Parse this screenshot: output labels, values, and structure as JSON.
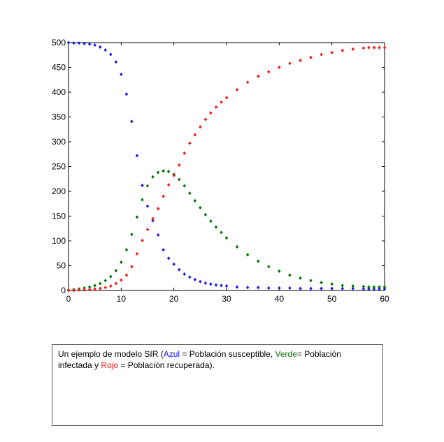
{
  "chart_data": {
    "type": "scatter",
    "title": "",
    "xlabel": "",
    "ylabel": "",
    "xlim": [
      0,
      60
    ],
    "ylim": [
      0,
      500
    ],
    "xticks": [
      0,
      10,
      20,
      30,
      40,
      50,
      60
    ],
    "yticks": [
      0,
      50,
      100,
      150,
      200,
      250,
      300,
      350,
      400,
      450,
      500
    ],
    "grid": false,
    "legend": "none",
    "series": [
      {
        "color": "#1414ff",
        "x": [
          0,
          1,
          2,
          3,
          4,
          5,
          6,
          7,
          8,
          9,
          10,
          11,
          12,
          13,
          14,
          15,
          16,
          17,
          18,
          19,
          20,
          21,
          22,
          23,
          24,
          25,
          26,
          27,
          28,
          29,
          30,
          32,
          34,
          36,
          38,
          40,
          42,
          44,
          46,
          48,
          50,
          52,
          54,
          56,
          57,
          58,
          59,
          60
        ],
        "y": [
          500,
          499,
          499,
          498,
          497,
          495,
          491,
          485,
          476,
          461,
          436,
          396,
          341,
          272,
          212,
          170,
          141,
          112,
          82,
          65,
          53,
          42,
          33,
          27,
          22,
          18,
          15,
          13,
          11,
          10,
          9,
          7,
          6,
          6,
          5,
          5,
          5,
          4,
          4,
          4,
          4,
          4,
          4,
          3,
          3,
          3,
          3,
          3
        ]
      },
      {
        "color": "#007300",
        "x": [
          0,
          1,
          2,
          3,
          4,
          5,
          6,
          7,
          8,
          9,
          10,
          11,
          12,
          13,
          14,
          15,
          16,
          17,
          18,
          19,
          20,
          21,
          22,
          23,
          24,
          25,
          26,
          27,
          28,
          29,
          30,
          32,
          34,
          36,
          38,
          40,
          42,
          44,
          46,
          48,
          50,
          52,
          54,
          56,
          57,
          58,
          59,
          60
        ],
        "y": [
          1,
          2,
          3,
          5,
          7,
          10,
          14,
          20,
          28,
          40,
          57,
          82,
          113,
          148,
          183,
          211,
          229,
          238,
          241,
          240,
          234,
          224,
          211,
          196,
          181,
          167,
          153,
          140,
          128,
          117,
          106,
          88,
          72,
          59,
          48,
          39,
          31,
          25,
          20,
          16,
          13,
          10,
          9,
          8,
          7,
          7,
          7,
          7
        ]
      },
      {
        "color": "#ff1414",
        "x": [
          0,
          1,
          2,
          3,
          4,
          5,
          6,
          7,
          8,
          9,
          10,
          11,
          12,
          13,
          14,
          15,
          16,
          17,
          18,
          19,
          20,
          21,
          22,
          23,
          24,
          25,
          26,
          27,
          28,
          29,
          30,
          32,
          34,
          36,
          38,
          40,
          42,
          44,
          46,
          48,
          50,
          52,
          54,
          56,
          57,
          58,
          59,
          60
        ],
        "y": [
          0,
          0,
          1,
          1,
          2,
          3,
          4,
          6,
          9,
          14,
          21,
          31,
          48,
          74,
          101,
          123,
          145,
          165,
          190,
          213,
          232,
          253,
          277,
          297,
          314,
          330,
          345,
          358,
          370,
          380,
          389,
          405,
          420,
          432,
          441,
          450,
          458,
          464,
          470,
          476,
          480,
          484,
          487,
          489,
          490,
          490,
          490,
          490
        ]
      }
    ]
  },
  "caption": {
    "part1": "Un ejemplo de modelo SIR (",
    "azul": "Azul",
    "part2": " = Población susceptible, ",
    "verde": "Verde",
    "part3": "= Población infectada y ",
    "rojo": "Rojo",
    "part4": " = Población recuperada)."
  }
}
